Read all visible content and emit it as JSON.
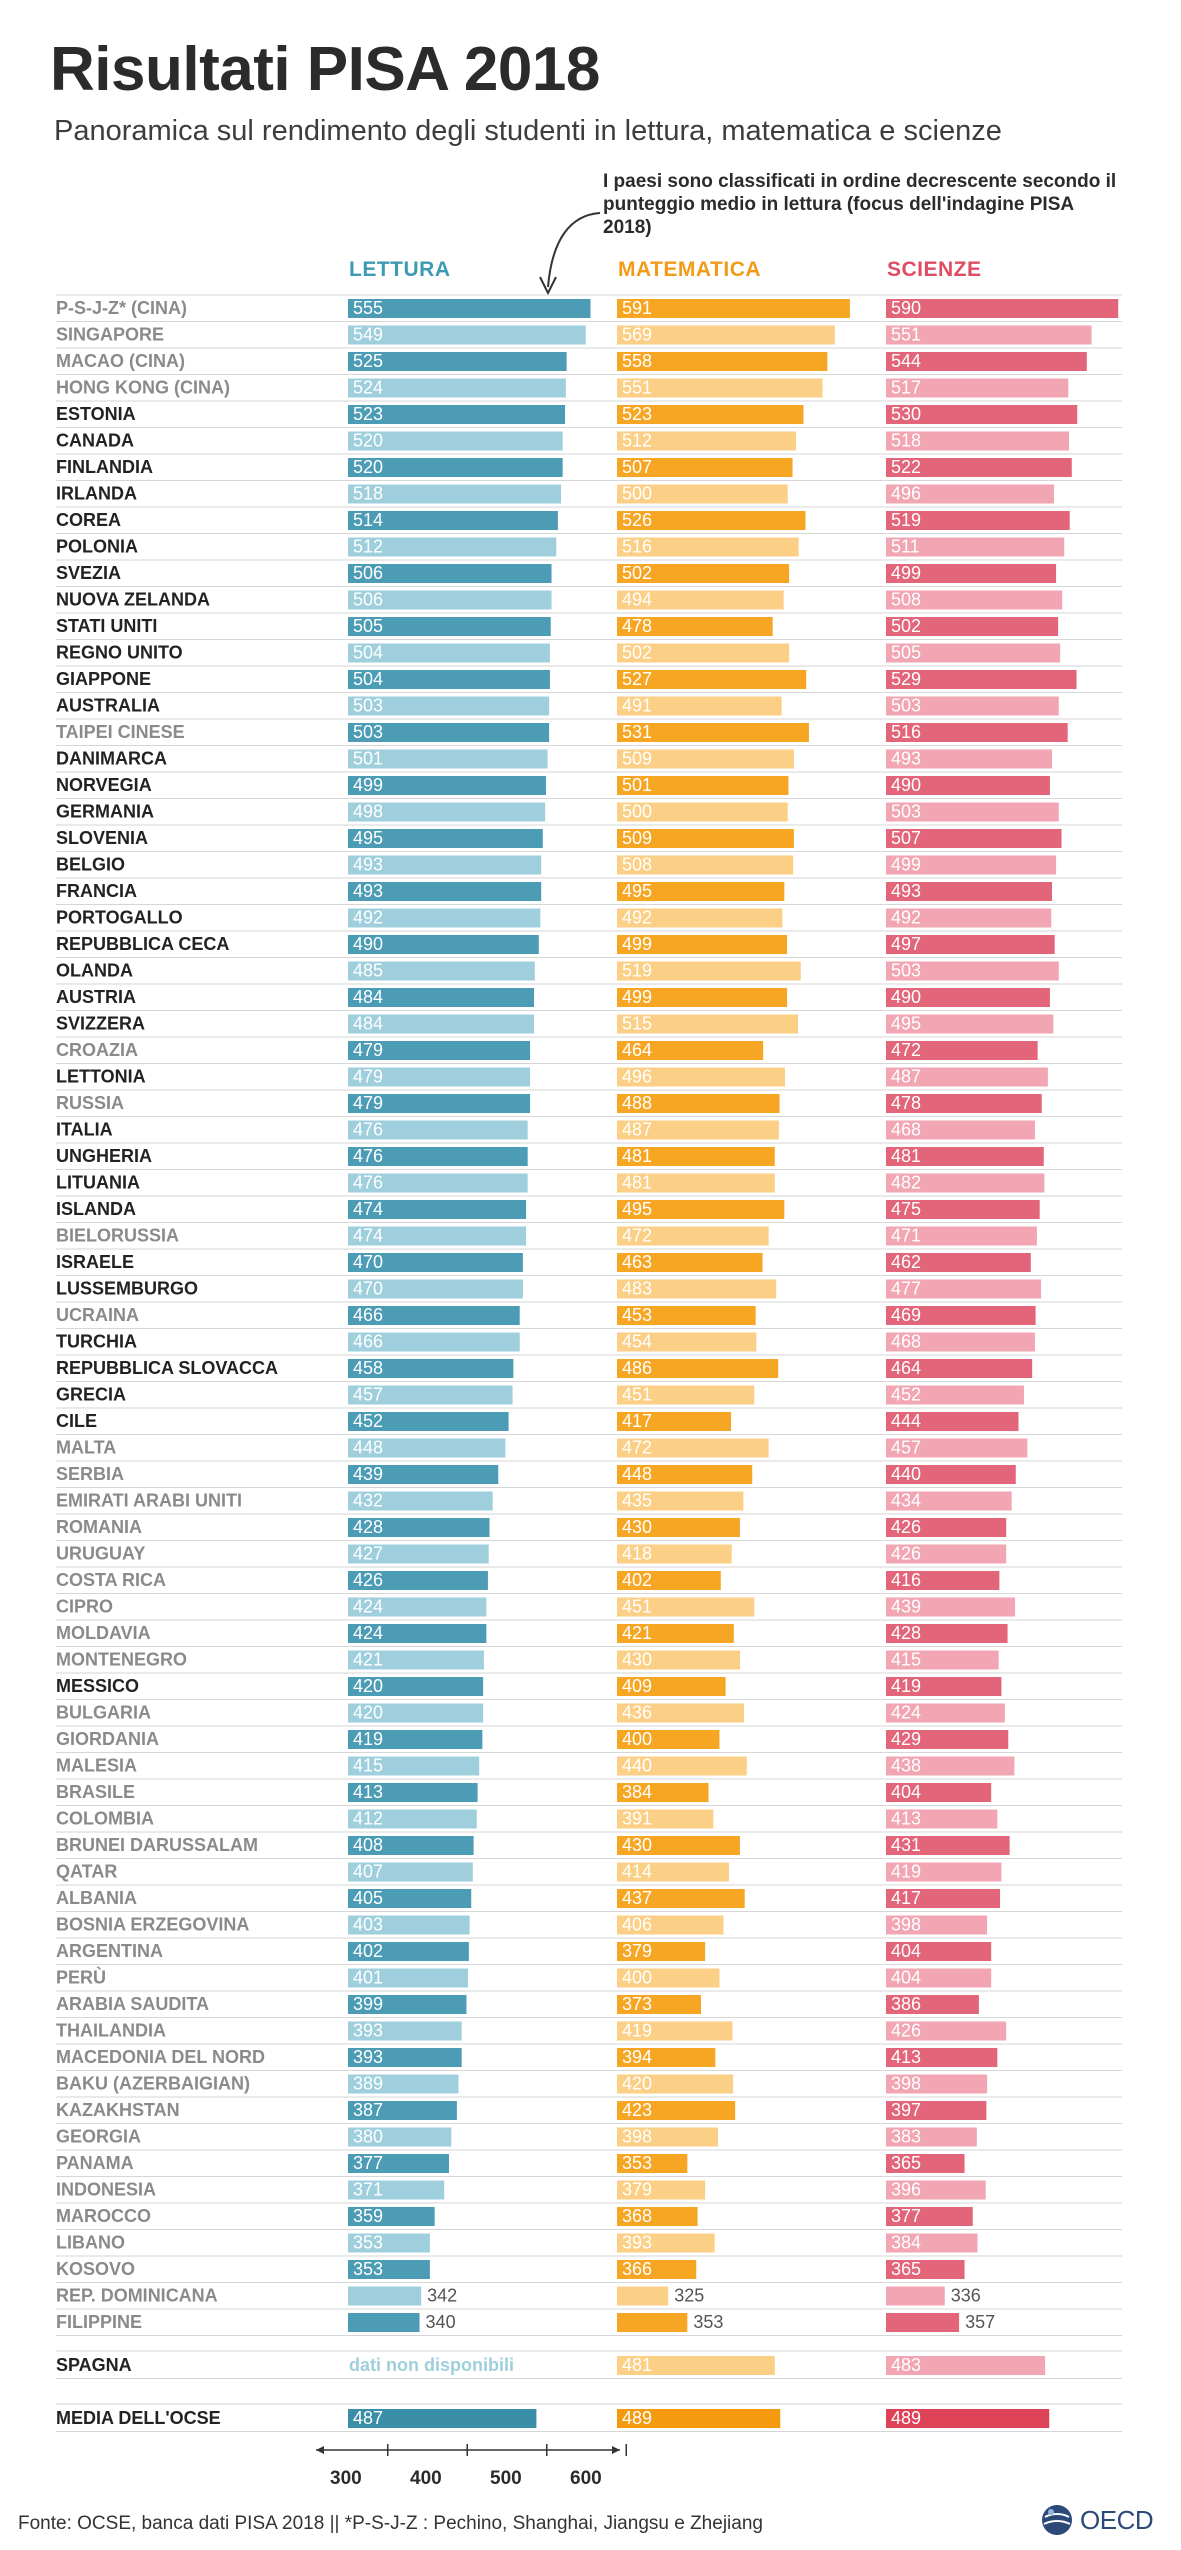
{
  "title": "Risultati PISA 2018",
  "subtitle": "Panoramica sul rendimento degli studenti in lettura, matematica e scienze",
  "note": "I paesi sono classificati in ordine decrescente secondo il punteggio medio in lettura (focus dell'indagine PISA 2018)",
  "columns": {
    "reading": "LETTURA",
    "math": "MATEMATICA",
    "science": "SCIENZE"
  },
  "colors": {
    "reading_dark": "#4b9cb4",
    "reading_light": "#9fcfdc",
    "math_dark": "#f6a623",
    "math_light": "#fbcf85",
    "science_dark": "#e2657a",
    "science_light": "#f2a6b3",
    "row_bold_text": "#222222",
    "row_light_text": "#8a8a8a"
  },
  "footer": "Fonte: OCSE, banca dati PISA 2018  ||  *P-S-J-Z :  Pechino, Shanghai, Jiangsu e Zhejiang",
  "logo_text": "OECD",
  "chart_data": {
    "type": "bar",
    "axis": {
      "ticks": [
        300,
        400,
        500,
        600
      ],
      "range": [
        250,
        600
      ]
    },
    "series_names": [
      "LETTURA",
      "MATEMATICA",
      "SCIENZE"
    ],
    "countries": [
      {
        "name": "P-S-J-Z* (CINA)",
        "reading": 555,
        "math": 591,
        "science": 590,
        "bold": false
      },
      {
        "name": "SINGAPORE",
        "reading": 549,
        "math": 569,
        "science": 551,
        "bold": false
      },
      {
        "name": "MACAO (CINA)",
        "reading": 525,
        "math": 558,
        "science": 544,
        "bold": false
      },
      {
        "name": "HONG KONG (CINA)",
        "reading": 524,
        "math": 551,
        "science": 517,
        "bold": false
      },
      {
        "name": "ESTONIA",
        "reading": 523,
        "math": 523,
        "science": 530,
        "bold": true
      },
      {
        "name": "CANADA",
        "reading": 520,
        "math": 512,
        "science": 518,
        "bold": true
      },
      {
        "name": "FINLANDIA",
        "reading": 520,
        "math": 507,
        "science": 522,
        "bold": true
      },
      {
        "name": "IRLANDA",
        "reading": 518,
        "math": 500,
        "science": 496,
        "bold": true
      },
      {
        "name": "COREA",
        "reading": 514,
        "math": 526,
        "science": 519,
        "bold": true
      },
      {
        "name": "POLONIA",
        "reading": 512,
        "math": 516,
        "science": 511,
        "bold": true
      },
      {
        "name": "SVEZIA",
        "reading": 506,
        "math": 502,
        "science": 499,
        "bold": true
      },
      {
        "name": "NUOVA ZELANDA",
        "reading": 506,
        "math": 494,
        "science": 508,
        "bold": true
      },
      {
        "name": "STATI UNITI",
        "reading": 505,
        "math": 478,
        "science": 502,
        "bold": true
      },
      {
        "name": "REGNO UNITO",
        "reading": 504,
        "math": 502,
        "science": 505,
        "bold": true
      },
      {
        "name": "GIAPPONE",
        "reading": 504,
        "math": 527,
        "science": 529,
        "bold": true
      },
      {
        "name": "AUSTRALIA",
        "reading": 503,
        "math": 491,
        "science": 503,
        "bold": true
      },
      {
        "name": "TAIPEI CINESE",
        "reading": 503,
        "math": 531,
        "science": 516,
        "bold": false
      },
      {
        "name": "DANIMARCA",
        "reading": 501,
        "math": 509,
        "science": 493,
        "bold": true
      },
      {
        "name": "NORVEGIA",
        "reading": 499,
        "math": 501,
        "science": 490,
        "bold": true
      },
      {
        "name": "GERMANIA",
        "reading": 498,
        "math": 500,
        "science": 503,
        "bold": true
      },
      {
        "name": "SLOVENIA",
        "reading": 495,
        "math": 509,
        "science": 507,
        "bold": true
      },
      {
        "name": "BELGIO",
        "reading": 493,
        "math": 508,
        "science": 499,
        "bold": true
      },
      {
        "name": "FRANCIA",
        "reading": 493,
        "math": 495,
        "science": 493,
        "bold": true
      },
      {
        "name": "PORTOGALLO",
        "reading": 492,
        "math": 492,
        "science": 492,
        "bold": true
      },
      {
        "name": "REPUBBLICA CECA",
        "reading": 490,
        "math": 499,
        "science": 497,
        "bold": true
      },
      {
        "name": "OLANDA",
        "reading": 485,
        "math": 519,
        "science": 503,
        "bold": true
      },
      {
        "name": "AUSTRIA",
        "reading": 484,
        "math": 499,
        "science": 490,
        "bold": true
      },
      {
        "name": "SVIZZERA",
        "reading": 484,
        "math": 515,
        "science": 495,
        "bold": true
      },
      {
        "name": "CROAZIA",
        "reading": 479,
        "math": 464,
        "science": 472,
        "bold": false
      },
      {
        "name": "LETTONIA",
        "reading": 479,
        "math": 496,
        "science": 487,
        "bold": true
      },
      {
        "name": "RUSSIA",
        "reading": 479,
        "math": 488,
        "science": 478,
        "bold": false
      },
      {
        "name": "ITALIA",
        "reading": 476,
        "math": 487,
        "science": 468,
        "bold": true
      },
      {
        "name": "UNGHERIA",
        "reading": 476,
        "math": 481,
        "science": 481,
        "bold": true
      },
      {
        "name": "LITUANIA",
        "reading": 476,
        "math": 481,
        "science": 482,
        "bold": true
      },
      {
        "name": "ISLANDA",
        "reading": 474,
        "math": 495,
        "science": 475,
        "bold": true
      },
      {
        "name": "BIELORUSSIA",
        "reading": 474,
        "math": 472,
        "science": 471,
        "bold": false
      },
      {
        "name": "ISRAELE",
        "reading": 470,
        "math": 463,
        "science": 462,
        "bold": true
      },
      {
        "name": "LUSSEMBURGO",
        "reading": 470,
        "math": 483,
        "science": 477,
        "bold": true
      },
      {
        "name": "UCRAINA",
        "reading": 466,
        "math": 453,
        "science": 469,
        "bold": false
      },
      {
        "name": "TURCHIA",
        "reading": 466,
        "math": 454,
        "science": 468,
        "bold": true
      },
      {
        "name": "REPUBBLICA SLOVACCA",
        "reading": 458,
        "math": 486,
        "science": 464,
        "bold": true
      },
      {
        "name": "GRECIA",
        "reading": 457,
        "math": 451,
        "science": 452,
        "bold": true
      },
      {
        "name": "CILE",
        "reading": 452,
        "math": 417,
        "science": 444,
        "bold": true
      },
      {
        "name": "MALTA",
        "reading": 448,
        "math": 472,
        "science": 457,
        "bold": false
      },
      {
        "name": "SERBIA",
        "reading": 439,
        "math": 448,
        "science": 440,
        "bold": false
      },
      {
        "name": "EMIRATI ARABI UNITI",
        "reading": 432,
        "math": 435,
        "science": 434,
        "bold": false
      },
      {
        "name": "ROMANIA",
        "reading": 428,
        "math": 430,
        "science": 426,
        "bold": false
      },
      {
        "name": "URUGUAY",
        "reading": 427,
        "math": 418,
        "science": 426,
        "bold": false
      },
      {
        "name": "COSTA RICA",
        "reading": 426,
        "math": 402,
        "science": 416,
        "bold": false
      },
      {
        "name": "CIPRO",
        "reading": 424,
        "math": 451,
        "science": 439,
        "bold": false
      },
      {
        "name": "MOLDAVIA",
        "reading": 424,
        "math": 421,
        "science": 428,
        "bold": false
      },
      {
        "name": "MONTENEGRO",
        "reading": 421,
        "math": 430,
        "science": 415,
        "bold": false
      },
      {
        "name": "MESSICO",
        "reading": 420,
        "math": 409,
        "science": 419,
        "bold": true
      },
      {
        "name": "BULGARIA",
        "reading": 420,
        "math": 436,
        "science": 424,
        "bold": false
      },
      {
        "name": "GIORDANIA",
        "reading": 419,
        "math": 400,
        "science": 429,
        "bold": false
      },
      {
        "name": "MALESIA",
        "reading": 415,
        "math": 440,
        "science": 438,
        "bold": false
      },
      {
        "name": "BRASILE",
        "reading": 413,
        "math": 384,
        "science": 404,
        "bold": false
      },
      {
        "name": "COLOMBIA",
        "reading": 412,
        "math": 391,
        "science": 413,
        "bold": false
      },
      {
        "name": "BRUNEI DARUSSALAM",
        "reading": 408,
        "math": 430,
        "science": 431,
        "bold": false
      },
      {
        "name": "QATAR",
        "reading": 407,
        "math": 414,
        "science": 419,
        "bold": false
      },
      {
        "name": "ALBANIA",
        "reading": 405,
        "math": 437,
        "science": 417,
        "bold": false
      },
      {
        "name": "BOSNIA ERZEGOVINA",
        "reading": 403,
        "math": 406,
        "science": 398,
        "bold": false
      },
      {
        "name": "ARGENTINA",
        "reading": 402,
        "math": 379,
        "science": 404,
        "bold": false
      },
      {
        "name": "PERÙ",
        "reading": 401,
        "math": 400,
        "science": 404,
        "bold": false
      },
      {
        "name": "ARABIA SAUDITA",
        "reading": 399,
        "math": 373,
        "science": 386,
        "bold": false
      },
      {
        "name": "THAILANDIA",
        "reading": 393,
        "math": 419,
        "science": 426,
        "bold": false
      },
      {
        "name": "MACEDONIA DEL NORD",
        "reading": 393,
        "math": 394,
        "science": 413,
        "bold": false
      },
      {
        "name": "BAKU (AZERBAIGIAN)",
        "reading": 389,
        "math": 420,
        "science": 398,
        "bold": false
      },
      {
        "name": "KAZAKHSTAN",
        "reading": 387,
        "math": 423,
        "science": 397,
        "bold": false
      },
      {
        "name": "GEORGIA",
        "reading": 380,
        "math": 398,
        "science": 383,
        "bold": false
      },
      {
        "name": "PANAMA",
        "reading": 377,
        "math": 353,
        "science": 365,
        "bold": false
      },
      {
        "name": "INDONESIA",
        "reading": 371,
        "math": 379,
        "science": 396,
        "bold": false
      },
      {
        "name": "MAROCCO",
        "reading": 359,
        "math": 368,
        "science": 377,
        "bold": false
      },
      {
        "name": "LIBANO",
        "reading": 353,
        "math": 393,
        "science": 384,
        "bold": false
      },
      {
        "name": "KOSOVO",
        "reading": 353,
        "math": 366,
        "science": 365,
        "bold": false
      },
      {
        "name": "REP. DOMINICANA",
        "reading": 342,
        "math": 325,
        "science": 336,
        "bold": false
      },
      {
        "name": "FILIPPINE",
        "reading": 340,
        "math": 353,
        "science": 357,
        "bold": false
      }
    ],
    "spain": {
      "name": "SPAGNA",
      "reading_text": "dati non disponibili",
      "math": 481,
      "science": 483
    },
    "oecd_average": {
      "name": "MEDIA DELL'OCSE",
      "reading": 487,
      "math": 489,
      "science": 489
    }
  }
}
